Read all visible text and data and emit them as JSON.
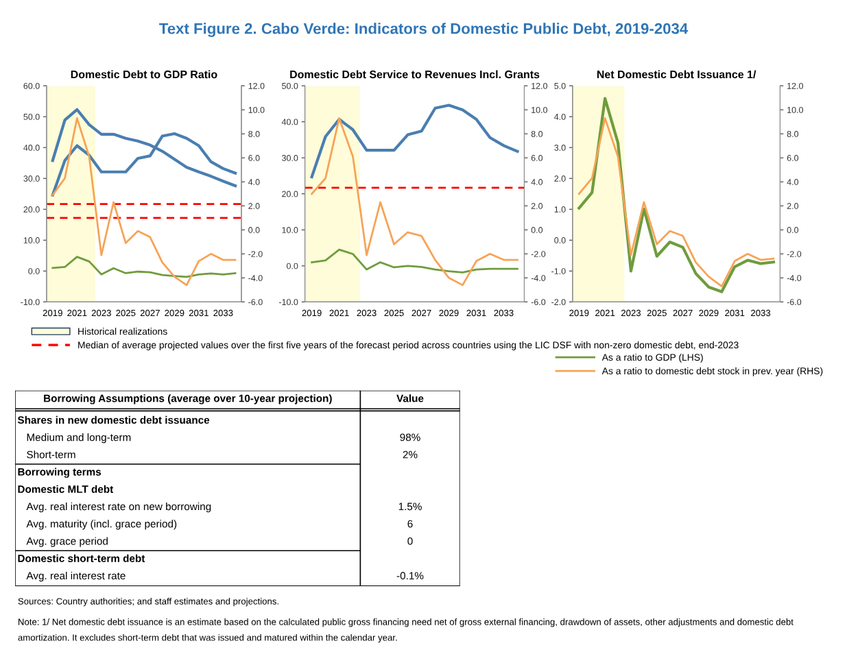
{
  "chart_data": [
    {
      "type": "other",
      "title": "Text Figure 2. Cabo Verde: Indicators of Domestic Public Debt, 2019-2034"
    },
    {
      "type": "line",
      "title": "Domestic Debt to GDP Ratio",
      "x": [
        2019,
        2020,
        2021,
        2022,
        2023,
        2024,
        2025,
        2026,
        2027,
        2028,
        2029,
        2030,
        2031,
        2032,
        2033,
        2034
      ],
      "xlim": [
        2018.5,
        2034.5
      ],
      "xticks": [
        2019,
        2021,
        2023,
        2025,
        2027,
        2029,
        2031,
        2033
      ],
      "ylim": [
        -10,
        60
      ],
      "yticks": [
        {
          "value": -10,
          "label": "-10.0"
        },
        {
          "value": 0,
          "label": "0.0"
        },
        {
          "value": 10,
          "label": "10.0"
        },
        {
          "value": 20,
          "label": "20.0"
        },
        {
          "value": 30,
          "label": "30.0"
        },
        {
          "value": 40,
          "label": "40.0"
        },
        {
          "value": 50,
          "label": "50.0"
        },
        {
          "value": 60,
          "label": "60.0"
        }
      ],
      "y2lim": [
        -6,
        12
      ],
      "y2ticks": [
        {
          "value": -6,
          "label": "-6.0"
        },
        {
          "value": -4,
          "label": "-4.0"
        },
        {
          "value": -2,
          "label": "-2.0"
        },
        {
          "value": 0,
          "label": "0.0"
        },
        {
          "value": 2,
          "label": "2.0"
        },
        {
          "value": 4,
          "label": "4.0"
        },
        {
          "value": 6,
          "label": "6.0"
        },
        {
          "value": 8,
          "label": "8.0"
        },
        {
          "value": 10,
          "label": "10.0"
        },
        {
          "value": 12,
          "label": "12.0"
        }
      ],
      "series": [
        {
          "color": "#4a7eb0",
          "values": [
            35.8,
            48.9,
            52.3,
            47.4,
            44.3,
            44.3,
            43.0,
            42.1,
            40.8,
            38.8,
            36.2,
            33.6,
            32.1,
            30.7,
            29.1,
            27.6
          ]
        },
        {
          "color": "#4a7eb0",
          "values": [
            24.6,
            35.8,
            40.6,
            37.5,
            32.1,
            32.1,
            32.1,
            36.5,
            37.3,
            43.7,
            44.5,
            43.0,
            40.6,
            35.4,
            33.2,
            31.7
          ]
        },
        {
          "color": "#6f9c3d",
          "values": [
            1.0,
            1.3,
            4.6,
            3.1,
            -1.1,
            0.9,
            -0.7,
            -0.2,
            -0.4,
            -1.3,
            -1.6,
            -1.9,
            -1.1,
            -0.8,
            -1.1,
            -0.7
          ]
        },
        {
          "color": "#f7a356",
          "axis": "y2",
          "values": [
            2.9,
            4.3,
            9.3,
            6.1,
            -2.1,
            2.3,
            -1.1,
            -0.1,
            -0.6,
            -2.7,
            -3.9,
            -4.6,
            -2.6,
            -2.0,
            -2.5,
            -2.5
          ]
        }
      ],
      "bands": [
        {
          "axis": "x",
          "from": 2018.5,
          "to": 2022.5,
          "label": "Historical realizations",
          "color": "#fefcd9"
        }
      ],
      "ref_lines": [
        {
          "axis": "y",
          "value": 21.7,
          "label": "Median of average projected values over the first five years of the forecast period across countries using the LIC DSF with non-zero domestic debt, end-2023",
          "color": "#ff0000",
          "line_style": "dashed"
        },
        {
          "axis": "y",
          "value": 17.2,
          "color": "#ff0000",
          "line_style": "dashed"
        }
      ],
      "legend": "bottom",
      "grid": false
    },
    {
      "type": "line",
      "title": "Domestic Debt Service to Revenues Incl. Grants",
      "x": [
        2019,
        2020,
        2021,
        2022,
        2023,
        2024,
        2025,
        2026,
        2027,
        2028,
        2029,
        2030,
        2031,
        2032,
        2033,
        2034
      ],
      "xlim": [
        2018.5,
        2034.5
      ],
      "xticks": [
        2019,
        2021,
        2023,
        2025,
        2027,
        2029,
        2031,
        2033
      ],
      "ylim": [
        -10,
        50
      ],
      "yticks": [
        {
          "value": -10,
          "label": "-10.0"
        },
        {
          "value": 0,
          "label": "0.0"
        },
        {
          "value": 10,
          "label": "10.0"
        },
        {
          "value": 20,
          "label": "20.0"
        },
        {
          "value": 30,
          "label": "30.0"
        },
        {
          "value": 40,
          "label": "40.0"
        },
        {
          "value": 50,
          "label": "50.0"
        }
      ],
      "y2lim": [
        -6,
        12
      ],
      "y2ticks": [
        {
          "value": -6,
          "label": "-6.0"
        },
        {
          "value": -4,
          "label": "-4.0"
        },
        {
          "value": -2,
          "label": "-2.0"
        },
        {
          "value": 0,
          "label": "0.0"
        },
        {
          "value": 2,
          "label": "2.0"
        },
        {
          "value": 4,
          "label": "4.0"
        },
        {
          "value": 6,
          "label": "6.0"
        },
        {
          "value": 8,
          "label": "8.0"
        },
        {
          "value": 10,
          "label": "10.0"
        },
        {
          "value": 12,
          "label": "12.0"
        }
      ],
      "series": [
        {
          "color": "#4a7eb0",
          "values": [
            24.7,
            35.9,
            40.7,
            37.8,
            32.1,
            32.1,
            32.1,
            36.4,
            37.4,
            43.8,
            44.6,
            43.3,
            40.7,
            35.6,
            33.4,
            31.8
          ]
        },
        {
          "color": "#6f9c3d",
          "values": [
            1.0,
            1.5,
            4.5,
            3.3,
            -1.0,
            1.0,
            -0.4,
            0.0,
            -0.3,
            -1.0,
            -1.5,
            -1.8,
            -1.0,
            -0.8,
            -0.8,
            -0.8
          ]
        },
        {
          "color": "#f7a356",
          "axis": "y2",
          "values": [
            3.0,
            4.3,
            9.3,
            6.1,
            -2.1,
            2.3,
            -1.2,
            -0.2,
            -0.5,
            -2.5,
            -4.0,
            -4.6,
            -2.6,
            -2.0,
            -2.5,
            -2.5
          ]
        }
      ],
      "bands": [
        {
          "axis": "x",
          "from": 2018.5,
          "to": 2022.5,
          "color": "#fefcd9"
        }
      ],
      "ref_lines": [
        {
          "axis": "y",
          "value": 21.7,
          "color": "#ff0000",
          "line_style": "dashed"
        }
      ],
      "grid": false
    },
    {
      "type": "line",
      "title": "Net Domestic Debt Issuance 1/",
      "x": [
        2019,
        2020,
        2021,
        2022,
        2023,
        2024,
        2025,
        2026,
        2027,
        2028,
        2029,
        2030,
        2031,
        2032,
        2033,
        2034
      ],
      "xlim": [
        2018.5,
        2034.5
      ],
      "xticks": [
        2019,
        2021,
        2023,
        2025,
        2027,
        2029,
        2031,
        2033
      ],
      "ylim": [
        -2,
        5
      ],
      "yticks": [
        {
          "value": -2,
          "label": "-2.0"
        },
        {
          "value": -1,
          "label": "-1.0"
        },
        {
          "value": 0,
          "label": "0.0"
        },
        {
          "value": 1,
          "label": "1.0"
        },
        {
          "value": 2,
          "label": "2.0"
        },
        {
          "value": 3,
          "label": "3.0"
        },
        {
          "value": 4,
          "label": "4.0"
        },
        {
          "value": 5,
          "label": "5.0"
        }
      ],
      "y2lim": [
        -6,
        12
      ],
      "y2ticks": [
        {
          "value": -6,
          "label": "-6.0"
        },
        {
          "value": -4,
          "label": "-4.0"
        },
        {
          "value": -2,
          "label": "-2.0"
        },
        {
          "value": 0,
          "label": "0.0"
        },
        {
          "value": 2,
          "label": "2.0"
        },
        {
          "value": 4,
          "label": "4.0"
        },
        {
          "value": 6,
          "label": "6.0"
        },
        {
          "value": 8,
          "label": "8.0"
        },
        {
          "value": 10,
          "label": "10.0"
        },
        {
          "value": 12,
          "label": "12.0"
        }
      ],
      "series": [
        {
          "name": "As a ratio to GDP (LHS)",
          "color": "#6f9c3d",
          "values": [
            1.04,
            1.54,
            4.59,
            3.15,
            -1.0,
            1.01,
            -0.52,
            -0.06,
            -0.23,
            -1.08,
            -1.52,
            -1.67,
            -0.86,
            -0.65,
            -0.76,
            -0.71
          ]
        },
        {
          "name": "As a ratio to domestic debt stock in prev. year (RHS)",
          "color": "#f7a356",
          "axis": "y2",
          "values": [
            3.0,
            4.3,
            9.3,
            6.1,
            -2.1,
            2.3,
            -1.2,
            -0.1,
            -0.5,
            -2.7,
            -3.9,
            -4.7,
            -2.6,
            -2.0,
            -2.5,
            -2.4
          ]
        }
      ],
      "bands": [
        {
          "axis": "x",
          "from": 2018.5,
          "to": 2022.5,
          "color": "#fefcd9"
        }
      ],
      "legend": "bottom",
      "grid": false
    },
    {
      "type": "other",
      "categories": [
        "Borrowing Assumptions (average over 10-year projection)",
        "Value"
      ],
      "y_categories": [
        "Shares in new domestic debt issuance",
        "Medium and long-term",
        "Short-term",
        "Borrowing terms",
        "Domestic MLT debt",
        "Avg. real interest rate on new borrowing",
        "Avg. maturity (incl. grace period)",
        "Avg. grace period",
        "Domestic short-term debt",
        "Avg. real interest rate"
      ],
      "cell_labels": [
        [
          null
        ],
        [
          "98%"
        ],
        [
          "2%"
        ],
        [
          null
        ],
        [
          null
        ],
        [
          "1.5%"
        ],
        [
          "6"
        ],
        [
          "0"
        ],
        [
          null
        ],
        [
          "-0.1%"
        ]
      ],
      "annotations": [
        "Sources: Country authorities; and staff estimates and projections.",
        "Note: 1/ Net domestic debt issuance is an estimate based on the calculated public gross financing need net of gross external financing, drawdown of assets, other adjustments and domestic debt amortization. It excludes short-term debt that was issued and matured within the calendar year."
      ]
    }
  ]
}
